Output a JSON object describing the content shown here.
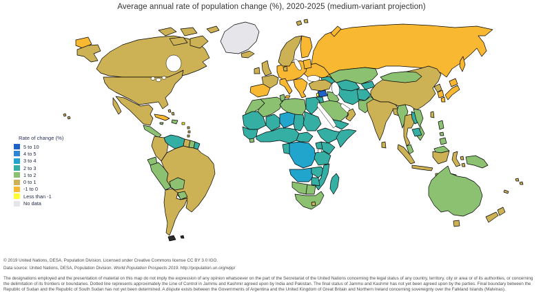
{
  "title": "Average annual rate of population change (%), 2020-2025 (medium-variant projection)",
  "legend": {
    "title": "Rate of change (%)",
    "items": [
      {
        "key": "r5_10",
        "label": "5 to 10",
        "color": "#1E62C8"
      },
      {
        "key": "r4_5",
        "label": "4 to 5",
        "color": "#2E86D5"
      },
      {
        "key": "r3_4",
        "label": "3 to 4",
        "color": "#22A5CD"
      },
      {
        "key": "r2_3",
        "label": "2 to 3",
        "color": "#35AFA3"
      },
      {
        "key": "r1_2",
        "label": "1 to 2",
        "color": "#8CC172"
      },
      {
        "key": "r0_1",
        "label": "0 to 1",
        "color": "#CCB155"
      },
      {
        "key": "rm1_0",
        "label": "-1 to 0",
        "color": "#F8B831"
      },
      {
        "key": "lt_m1",
        "label": "Less than -1",
        "color": "#FFFF33"
      },
      {
        "key": "no_data",
        "label": "No data",
        "color": "#E5E5EA"
      }
    ]
  },
  "map": {
    "type": "choropleth-world-map",
    "ocean": "#FFFFFF",
    "border": "#000000",
    "regions": {
      "alaska": "r0_1",
      "chukotka": "rm1_0",
      "canada": "r0_1",
      "arctic-islands": "r0_1",
      "greenland": "no_data",
      "iceland": "r0_1",
      "usa": "r0_1",
      "mexico": "r0_1",
      "cuba": "rm1_0",
      "bahamas": "r0_1",
      "hispaniola": "r1_2",
      "jamaica": "r1_2",
      "puerto-rico": "lt_m1",
      "lesser-antilles": "r0_1",
      "central-america": "r1_2",
      "venezuela": "r2_3",
      "colombia": "r0_1",
      "guyana": "r0_1",
      "suriname": "r1_2",
      "french-guiana": "r2_3",
      "ecuador": "r1_2",
      "peru": "r1_2",
      "brazil": "r0_1",
      "bolivia": "r1_2",
      "paraguay": "r1_2",
      "southern-cone": "r0_1",
      "uk": "r0_1",
      "ireland": "r0_1",
      "france": "r0_1",
      "norway-sweden": "r0_1",
      "denmark": "r0_1",
      "finland": "rm1_0",
      "baltics": "rm1_0",
      "central-europe": "rm1_0",
      "iberia": "rm1_0",
      "italy": "rm1_0",
      "balkans": "rm1_0",
      "eastern-europe": "rm1_0",
      "russia": "rm1_0",
      "svalbard": "r0_1",
      "turkey": "r0_1",
      "caucasus": "r2_3",
      "syria": "r5_10",
      "lebanon": "lt_m1",
      "levant": "r2_3",
      "iraq": "r1_2",
      "saudi-arabia": "r1_2",
      "yemen": "r2_3",
      "oman": "r0_1",
      "iran": "r2_3",
      "afghanistan": "r2_3",
      "pakistan": "r1_2",
      "kashmir": "no_data",
      "central-asia": "r2_3",
      "kyrgyz-tajik": "r2_3",
      "kazakhstan": "r1_2",
      "india": "r0_1",
      "bangladesh": "r0_1",
      "sri-lanka": "r0_1",
      "myanmar": "r1_2",
      "thailand": "r0_1",
      "laos": "r2_3",
      "cambodia": "r2_3",
      "vietnam": "r1_2",
      "malaysia": "r1_2",
      "indonesia": "r0_1",
      "philippines": "r1_2",
      "new-guinea": "r1_2",
      "china": "r0_1",
      "mongolia": "r1_2",
      "north-korea": "r0_1",
      "south-korea": "rm1_0",
      "japan": "rm1_0",
      "taiwan": "r0_1",
      "australia": "r1_2",
      "tasmania": "r0_1",
      "new-zealand": "r0_1",
      "pacific-islands": "r0_1",
      "morocco": "r1_2",
      "algeria": "r1_2",
      "tunisia": "r1_2",
      "libya": "r1_2",
      "egypt": "r2_3",
      "mauritania-wsahara": "r2_3",
      "mali": "r2_3",
      "niger": "r3_4",
      "chad": "r2_3",
      "sudan": "r2_3",
      "senegal-guinea": "r2_3",
      "sierra-leone": "r1_2",
      "west-africa-coast": "r2_3",
      "cameroon-car": "r2_3",
      "ethiopia": "r2_3",
      "somalia": "r2_3",
      "kenya": "r2_3",
      "uganda": "r2_3",
      "congo-gabon": "r2_3",
      "drc": "r3_4",
      "tanzania": "r2_3",
      "angola": "r3_4",
      "zambia": "r2_3",
      "mozambique": "r2_3",
      "zimbabwe": "r2_3",
      "madagascar": "r2_3",
      "namibia": "r1_2",
      "botswana": "r1_2",
      "south-africa": "r1_2",
      "lesotho": "r0_1"
    }
  },
  "footer": {
    "copyright": "© 2019 United Nations, DESA, Population Division. Licensed under Creative Commons license CC BY 3.0 IGO.",
    "source_prefix": "Data source: United Nations, DESA, Population Division. ",
    "source_italic": "World Population Prospects 2019",
    "source_suffix": ". http://population.un.org/wpp/",
    "disclaimer": "The designations employed and the presentation of material on this map do not imply the expression of any opinion whatsoever on the part of the Secretariat of the United Nations concerning the legal status of any country, territory, city or area or of its authorities, or concerning the delimitation of its frontiers or boundaries. Dotted line represents approximately the Line of Control in Jammu and Kashmir agreed upon by India and Pakistan. The final status of Jammu and Kashmir has not yet been agreed upon by the parties. Final boundary between the Republic of Sudan and the Republic of South Sudan has not yet been determined. A dispute exists between the Governments of Argentina and the United Kingdom of Great Britain and Northern Ireland concerning sovereignty over the Falkland Islands (Malvinas)."
  }
}
